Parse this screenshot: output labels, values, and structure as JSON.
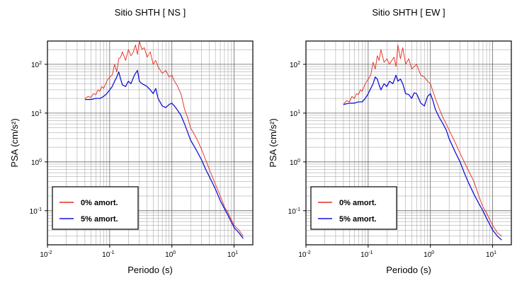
{
  "chart_data": [
    {
      "type": "line",
      "title": "Sitio SHTH [ NS ]",
      "xlabel": "Periodo (s)",
      "ylabel": "PSA (cm/s²)",
      "x_scale": "log",
      "y_scale": "log",
      "xlim": [
        0.01,
        20
      ],
      "ylim": [
        0.02,
        300
      ],
      "x_ticks": [
        {
          "base": "10",
          "exp": "-2"
        },
        {
          "base": "10",
          "exp": "-1"
        },
        {
          "base": "10",
          "exp": "0"
        },
        {
          "base": "10",
          "exp": "1"
        }
      ],
      "y_ticks": [
        {
          "base": "10",
          "exp": "-1"
        },
        {
          "base": "10",
          "exp": "0"
        },
        {
          "base": "10",
          "exp": "1"
        },
        {
          "base": "10",
          "exp": "2"
        }
      ],
      "grid": true,
      "legend_position": "bottom-left",
      "series": [
        {
          "name": "0% amort.",
          "color": "#e8281e",
          "x": [
            0.04,
            0.045,
            0.05,
            0.055,
            0.06,
            0.065,
            0.07,
            0.075,
            0.08,
            0.09,
            0.1,
            0.11,
            0.12,
            0.13,
            0.14,
            0.15,
            0.16,
            0.18,
            0.2,
            0.22,
            0.24,
            0.26,
            0.28,
            0.3,
            0.33,
            0.36,
            0.4,
            0.45,
            0.5,
            0.55,
            0.6,
            0.7,
            0.8,
            0.9,
            1.0,
            1.1,
            1.2,
            1.4,
            1.6,
            1.8,
            2.0,
            2.5,
            3.0,
            3.5,
            4.0,
            5.0,
            6.0,
            7.0,
            8.0,
            10.0,
            12.0,
            14.0
          ],
          "y": [
            20,
            22,
            21,
            25,
            24,
            30,
            28,
            35,
            32,
            45,
            55,
            60,
            100,
            70,
            130,
            140,
            180,
            120,
            200,
            150,
            180,
            250,
            160,
            300,
            200,
            220,
            140,
            180,
            100,
            120,
            90,
            65,
            75,
            55,
            60,
            45,
            38,
            25,
            12,
            8,
            5,
            3,
            1.8,
            1.1,
            0.7,
            0.35,
            0.2,
            0.12,
            0.09,
            0.05,
            0.04,
            0.03
          ]
        },
        {
          "name": "5% amort.",
          "color": "#1414d8",
          "x": [
            0.04,
            0.05,
            0.06,
            0.07,
            0.08,
            0.09,
            0.1,
            0.11,
            0.12,
            0.13,
            0.14,
            0.15,
            0.16,
            0.18,
            0.2,
            0.22,
            0.25,
            0.28,
            0.3,
            0.33,
            0.36,
            0.4,
            0.45,
            0.5,
            0.55,
            0.6,
            0.7,
            0.8,
            0.9,
            1.0,
            1.1,
            1.2,
            1.4,
            1.6,
            1.8,
            2.0,
            2.5,
            3.0,
            3.5,
            4.0,
            5.0,
            6.0,
            7.0,
            8.0,
            10.0,
            12.0,
            14.0
          ],
          "y": [
            19,
            19,
            20,
            20,
            22,
            25,
            30,
            35,
            45,
            55,
            70,
            50,
            38,
            35,
            45,
            40,
            60,
            75,
            45,
            40,
            38,
            35,
            30,
            25,
            32,
            20,
            14,
            13,
            15,
            16,
            14,
            12,
            9,
            6,
            4,
            2.8,
            1.7,
            1.1,
            0.7,
            0.5,
            0.28,
            0.16,
            0.11,
            0.08,
            0.045,
            0.035,
            0.027
          ]
        }
      ]
    },
    {
      "type": "line",
      "title": "Sitio SHTH [ EW ]",
      "xlabel": "Periodo (s)",
      "ylabel": "PSA (cm/s²)",
      "x_scale": "log",
      "y_scale": "log",
      "xlim": [
        0.01,
        20
      ],
      "ylim": [
        0.02,
        300
      ],
      "x_ticks": [
        {
          "base": "10",
          "exp": "-2"
        },
        {
          "base": "10",
          "exp": "-1"
        },
        {
          "base": "10",
          "exp": "0"
        },
        {
          "base": "10",
          "exp": "1"
        }
      ],
      "y_ticks": [
        {
          "base": "10",
          "exp": "-1"
        },
        {
          "base": "10",
          "exp": "0"
        },
        {
          "base": "10",
          "exp": "1"
        },
        {
          "base": "10",
          "exp": "2"
        }
      ],
      "grid": true,
      "legend_position": "bottom-left",
      "series": [
        {
          "name": "0% amort.",
          "color": "#e8281e",
          "x": [
            0.04,
            0.045,
            0.05,
            0.055,
            0.06,
            0.065,
            0.07,
            0.075,
            0.08,
            0.09,
            0.1,
            0.11,
            0.12,
            0.13,
            0.14,
            0.15,
            0.16,
            0.18,
            0.2,
            0.22,
            0.24,
            0.26,
            0.28,
            0.3,
            0.33,
            0.36,
            0.4,
            0.45,
            0.5,
            0.55,
            0.6,
            0.7,
            0.8,
            0.9,
            1.0,
            1.2,
            1.4,
            1.6,
            1.8,
            2.0,
            2.5,
            3.0,
            3.5,
            4.0,
            5.0,
            6.0,
            7.0,
            8.0,
            10.0,
            12.0,
            14.0
          ],
          "y": [
            15,
            18,
            17,
            22,
            20,
            25,
            24,
            30,
            28,
            40,
            50,
            60,
            110,
            80,
            150,
            120,
            200,
            110,
            130,
            100,
            120,
            140,
            90,
            250,
            130,
            220,
            100,
            130,
            80,
            90,
            100,
            60,
            55,
            45,
            40,
            20,
            12,
            8,
            6,
            4.5,
            2.5,
            1.5,
            1.0,
            0.7,
            0.4,
            0.2,
            0.12,
            0.09,
            0.05,
            0.035,
            0.03
          ]
        },
        {
          "name": "5% amort.",
          "color": "#1414d8",
          "x": [
            0.04,
            0.05,
            0.06,
            0.07,
            0.08,
            0.09,
            0.1,
            0.11,
            0.12,
            0.13,
            0.14,
            0.15,
            0.16,
            0.18,
            0.2,
            0.22,
            0.25,
            0.28,
            0.3,
            0.33,
            0.36,
            0.4,
            0.45,
            0.5,
            0.55,
            0.6,
            0.7,
            0.8,
            0.9,
            1.0,
            1.1,
            1.2,
            1.4,
            1.6,
            1.8,
            2.0,
            2.5,
            3.0,
            3.5,
            4.0,
            5.0,
            6.0,
            7.0,
            8.0,
            10.0,
            12.0,
            14.0
          ],
          "y": [
            15,
            16,
            16,
            17,
            17,
            20,
            25,
            32,
            40,
            55,
            50,
            38,
            30,
            40,
            35,
            45,
            40,
            60,
            45,
            50,
            40,
            25,
            24,
            20,
            26,
            25,
            16,
            14,
            22,
            25,
            18,
            12,
            8,
            6,
            4.5,
            3,
            1.6,
            1.0,
            0.6,
            0.4,
            0.22,
            0.14,
            0.1,
            0.07,
            0.04,
            0.03,
            0.025
          ]
        }
      ]
    }
  ]
}
